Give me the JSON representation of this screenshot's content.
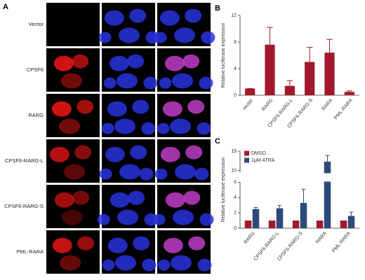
{
  "panel_a": {
    "label": "A",
    "rows": [
      "Vector",
      "CPSF6",
      "RARG",
      "CPSF6-RARG-L",
      "CPSF6-RARG-S",
      "PML-RARA"
    ]
  },
  "chart_data": [
    {
      "type": "bar",
      "label": "B",
      "ylabel": "Relative luciferase expression",
      "categories": [
        "vector",
        "RARG",
        "CPSF6-RARG-L",
        "CPSF6-RARG-S",
        "RARA",
        "PML-RARA"
      ],
      "values": [
        1,
        7.6,
        1.4,
        5.0,
        6.4,
        0.5
      ],
      "errors": [
        0,
        2.6,
        0.8,
        2.2,
        2.0,
        0.15
      ],
      "color": "#a3182c",
      "ylim": [
        0,
        12
      ],
      "yticks": [
        0,
        4,
        8,
        12
      ]
    },
    {
      "type": "bar",
      "label": "C",
      "ylabel": "Relative luciferase expression",
      "categories": [
        "RARG",
        "CPSF6-RARG-L",
        "CPSF6-RARG-S",
        "RARA",
        "PML-RARA"
      ],
      "series": [
        {
          "name": "DMSO",
          "color": "#a3182c",
          "values": [
            1,
            1,
            1,
            1,
            1
          ]
        },
        {
          "name": "1μM ATRA",
          "color": "#2d4a7a",
          "values": [
            2.5,
            2.6,
            3.3,
            12.3,
            1.6
          ],
          "errors": [
            0.2,
            0.4,
            1.8,
            1.6,
            0.5
          ]
        }
      ],
      "ylim": [
        0,
        15
      ],
      "ybreak": [
        6,
        9.5
      ],
      "yticks": [
        0,
        2,
        4,
        6,
        10,
        15
      ],
      "legend": "top-left"
    }
  ]
}
